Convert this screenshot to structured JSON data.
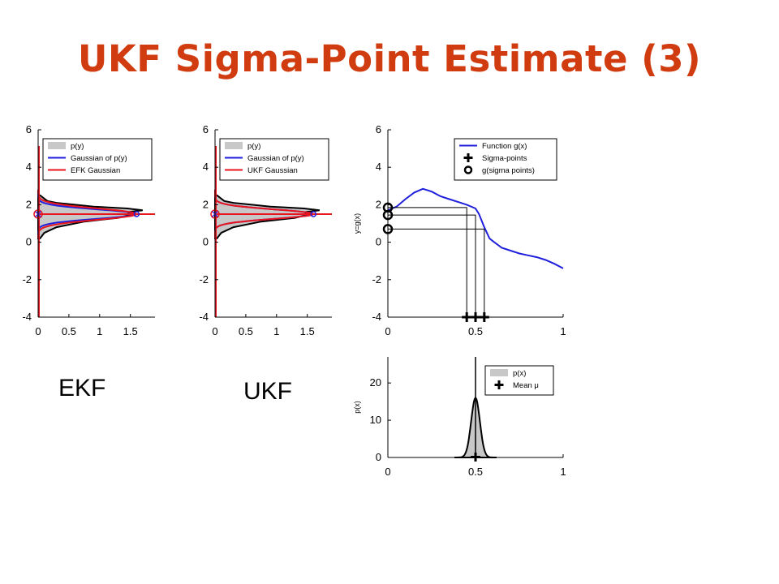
{
  "slide": {
    "title": "UKF Sigma-Point Estimate (3)",
    "caption_left": "EKF",
    "caption_right": "UKF"
  },
  "colors": {
    "title": "#d03c0f",
    "blue": "#1f1fdc",
    "red": "#e8141e",
    "fill": "#c8c8c8"
  },
  "chart_data": [
    {
      "type": "area",
      "xlim": [
        0,
        1.9
      ],
      "ylim": [
        -4,
        6
      ],
      "xticks": [
        "0",
        "0.5",
        "1",
        "1.5"
      ],
      "yticks": [
        "-4",
        "-2",
        "0",
        "2",
        "4",
        "6"
      ],
      "legend_position": "top-right",
      "legend": [
        "p(y)",
        "Gaussian of p(y)",
        "EFK Gaussian"
      ],
      "mode": "ekf",
      "series": [
        {
          "name": "p(y)",
          "y": [
            0.2,
            0.5,
            0.8,
            1.1,
            1.3,
            1.5,
            1.6,
            1.7,
            1.8,
            1.9,
            2.0,
            2.1,
            2.2,
            2.5
          ],
          "x": [
            0.03,
            0.1,
            0.3,
            0.75,
            1.3,
            1.55,
            1.45,
            1.7,
            1.45,
            0.9,
            0.6,
            0.3,
            0.15,
            0.03
          ]
        },
        {
          "name": "Gaussian of p(y)",
          "mean": 1.5,
          "std": 0.25,
          "peak": 1.6
        },
        {
          "name": "EFK Gaussian",
          "mean": 1.5,
          "std": 0.3,
          "peak": 1.6
        }
      ],
      "markers": [
        {
          "x": 0.0,
          "y": 1.5,
          "kind": "cross-circle"
        }
      ]
    },
    {
      "type": "area",
      "xlim": [
        0,
        1.9
      ],
      "ylim": [
        -4,
        6
      ],
      "xticks": [
        "0",
        "0.5",
        "1",
        "1.5"
      ],
      "yticks": [
        "-4",
        "-2",
        "0",
        "2",
        "4",
        "6"
      ],
      "legend_position": "top-right",
      "legend": [
        "p(y)",
        "Gaussian of p(y)",
        "UKF Gaussian"
      ],
      "mode": "ukf",
      "series": [
        {
          "name": "p(y)",
          "y": [
            0.2,
            0.5,
            0.8,
            1.1,
            1.3,
            1.5,
            1.6,
            1.7,
            1.8,
            1.9,
            2.0,
            2.1,
            2.2,
            2.5
          ],
          "x": [
            0.03,
            0.1,
            0.3,
            0.75,
            1.3,
            1.55,
            1.45,
            1.7,
            1.45,
            0.9,
            0.6,
            0.3,
            0.15,
            0.03
          ]
        },
        {
          "name": "Gaussian of p(y)",
          "mean": 1.5,
          "std": 0.25,
          "peak": 1.6
        },
        {
          "name": "UKF Gaussian",
          "mean": 1.5,
          "std": 0.25,
          "peak": 1.6
        }
      ],
      "markers": [
        {
          "x": 0.0,
          "y": 1.5,
          "kind": "cross-circle"
        }
      ]
    },
    {
      "type": "line",
      "xlim": [
        0,
        1
      ],
      "ylim": [
        -4,
        6
      ],
      "xticks": [
        "0",
        "0.5",
        "1"
      ],
      "yticks": [
        "-4",
        "-2",
        "0",
        "2",
        "4",
        "6"
      ],
      "ylabel": "y=g(x)",
      "legend_position": "top-right",
      "legend": [
        "Function g(x)",
        "Sigma-points",
        "g(sigma points)"
      ],
      "series": [
        {
          "name": "Function g(x)",
          "x": [
            0.0,
            0.05,
            0.1,
            0.15,
            0.2,
            0.25,
            0.3,
            0.35,
            0.4,
            0.45,
            0.5,
            0.52,
            0.55,
            0.58,
            0.6,
            0.65,
            0.7,
            0.75,
            0.8,
            0.85,
            0.9,
            0.95,
            1.0
          ],
          "y": [
            1.7,
            1.9,
            2.3,
            2.65,
            2.85,
            2.7,
            2.45,
            2.3,
            2.15,
            2.0,
            1.8,
            1.5,
            0.8,
            0.2,
            0.05,
            -0.3,
            -0.45,
            -0.6,
            -0.7,
            -0.8,
            -0.95,
            -1.15,
            -1.4
          ]
        },
        {
          "name": "Sigma-points",
          "x": [
            0.45,
            0.5,
            0.55
          ],
          "y": [
            -4,
            -4,
            -4
          ]
        },
        {
          "name": "g(sigma points)",
          "x": [
            0.0,
            0.0,
            0.0
          ],
          "y": [
            1.85,
            1.45,
            0.7
          ]
        }
      ],
      "projection_lines": [
        {
          "x": 0.45,
          "y": 1.85
        },
        {
          "x": 0.5,
          "y": 1.45
        },
        {
          "x": 0.55,
          "y": 0.7
        }
      ]
    },
    {
      "type": "area",
      "xlim": [
        0,
        1
      ],
      "ylim": [
        0,
        27
      ],
      "xticks": [
        "0",
        "0.5",
        "1"
      ],
      "yticks": [
        "0",
        "10",
        "20"
      ],
      "ylabel": "p(x)",
      "legend_position": "top-right",
      "legend": [
        "p(x)",
        "Mean μ"
      ],
      "series": [
        {
          "name": "p(x)",
          "mean": 0.5,
          "std": 0.025,
          "peak": 16
        },
        {
          "name": "Mean μ",
          "x": [
            0.5
          ],
          "y": [
            0
          ]
        }
      ]
    }
  ]
}
